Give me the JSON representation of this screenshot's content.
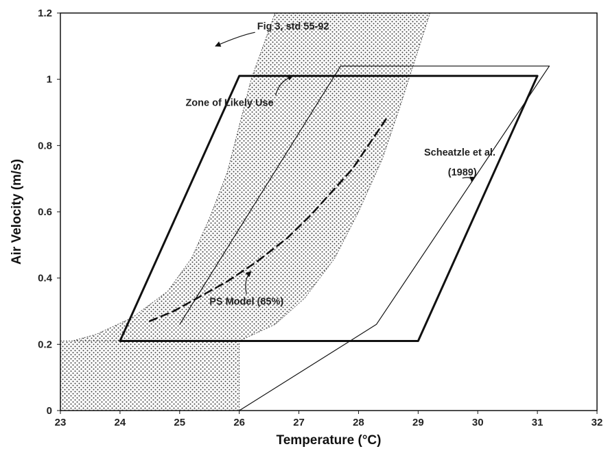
{
  "chart_data": {
    "type": "line",
    "xlabel": "Temperature (°C)",
    "ylabel": "Air Velocity (m/s)",
    "xlim": [
      23,
      32
    ],
    "ylim": [
      0,
      1.2
    ],
    "xticks": [
      "23",
      "24",
      "25",
      "26",
      "27",
      "28",
      "29",
      "30",
      "31",
      "32"
    ],
    "yticks": [
      "0",
      "0.2",
      "0.4",
      "0.6",
      "0.8",
      "1",
      "1.2"
    ],
    "grid": false,
    "regions": [
      {
        "id": "fig3-std-55-92",
        "style": "stipple",
        "left_boundary": [
          [
            23.0,
            0.2
          ],
          [
            23.6,
            0.23
          ],
          [
            24.2,
            0.28
          ],
          [
            24.8,
            0.36
          ],
          [
            25.2,
            0.46
          ],
          [
            25.5,
            0.58
          ],
          [
            25.8,
            0.72
          ],
          [
            26.0,
            0.86
          ],
          [
            26.2,
            1.0
          ],
          [
            26.4,
            1.1
          ],
          [
            26.6,
            1.2
          ]
        ],
        "right_boundary": [
          [
            26.0,
            0.21
          ],
          [
            26.6,
            0.26
          ],
          [
            27.1,
            0.34
          ],
          [
            27.6,
            0.46
          ],
          [
            28.0,
            0.6
          ],
          [
            28.4,
            0.76
          ],
          [
            28.7,
            0.92
          ],
          [
            28.95,
            1.06
          ],
          [
            29.2,
            1.2
          ]
        ],
        "lower_block": {
          "x": [
            23.0,
            26.0
          ],
          "y": [
            0.0,
            0.21
          ]
        }
      }
    ],
    "series": [
      {
        "id": "zone-of-likely-use",
        "style": "thick",
        "points": [
          [
            24.0,
            0.21
          ],
          [
            29.0,
            0.21
          ],
          [
            31.0,
            1.01
          ],
          [
            26.0,
            1.01
          ],
          [
            24.0,
            0.21
          ]
        ]
      },
      {
        "id": "scheatzle-1989",
        "style": "thin",
        "points": [
          [
            26.0,
            0.0
          ],
          [
            28.3,
            0.26
          ],
          [
            31.2,
            1.04
          ],
          [
            27.7,
            1.04
          ],
          [
            25.0,
            0.26
          ]
        ]
      },
      {
        "id": "ps-model-85",
        "style": "dashed",
        "points": [
          [
            24.5,
            0.27
          ],
          [
            24.9,
            0.3
          ],
          [
            25.3,
            0.34
          ],
          [
            25.8,
            0.39
          ],
          [
            26.3,
            0.45
          ],
          [
            26.8,
            0.52
          ],
          [
            27.2,
            0.59
          ],
          [
            27.6,
            0.67
          ],
          [
            27.9,
            0.73
          ],
          [
            28.2,
            0.81
          ],
          [
            28.5,
            0.89
          ]
        ]
      }
    ],
    "annotations": [
      {
        "text": "Fig 3, std 55-92",
        "x": 26.3,
        "y": 1.15,
        "arrow_to": [
          25.6,
          1.1
        ]
      },
      {
        "text": "Zone of Likely Use",
        "x": 25.1,
        "y": 0.92,
        "arrow_to": [
          26.9,
          1.01
        ]
      },
      {
        "text": "Scheatzle et al.",
        "x": 29.1,
        "y": 0.77,
        "arrow_to": null
      },
      {
        "text": "(1989)",
        "x": 29.5,
        "y": 0.71,
        "arrow_to": [
          29.9,
          0.69
        ]
      },
      {
        "text": "PS Model (85%)",
        "x": 25.5,
        "y": 0.32,
        "arrow_to": [
          26.2,
          0.42
        ]
      }
    ]
  }
}
